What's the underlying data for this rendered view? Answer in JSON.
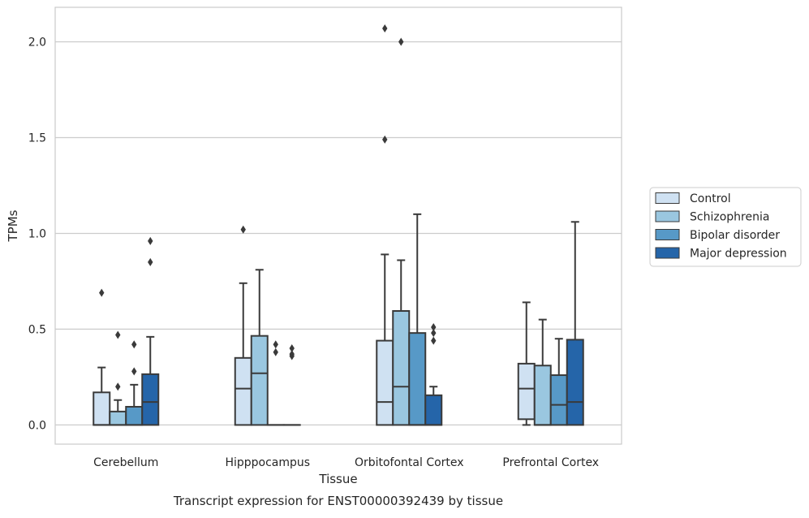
{
  "chart_data": {
    "type": "box",
    "caption": "Transcript expression for ENST00000392439 by tissue",
    "xlabel": "Tissue",
    "ylabel": "TPMs",
    "ylim": [
      -0.1,
      2.18
    ],
    "yticks": [
      0.0,
      0.5,
      1.0,
      1.5,
      2.0
    ],
    "ytick_labels": [
      "0.0",
      "0.5",
      "1.0",
      "1.5",
      "2.0"
    ],
    "grid": "horizontal",
    "legend_position": "right",
    "categories": [
      "Cerebellum",
      "Hipppocampus",
      "Orbitofontal Cortex",
      "Prefrontal Cortex"
    ],
    "series": [
      {
        "name": "Control",
        "color": "#cfe1f2",
        "boxes": [
          {
            "q1": 0.0,
            "median": 0.0,
            "q3": 0.17,
            "whisker_low": 0.0,
            "whisker_high": 0.3,
            "outliers": [
              0.69
            ]
          },
          {
            "q1": 0.0,
            "median": 0.19,
            "q3": 0.35,
            "whisker_low": 0.0,
            "whisker_high": 0.74,
            "outliers": [
              1.02
            ]
          },
          {
            "q1": 0.0,
            "median": 0.12,
            "q3": 0.44,
            "whisker_low": 0.0,
            "whisker_high": 0.89,
            "outliers": [
              1.49,
              2.07
            ]
          },
          {
            "q1": 0.03,
            "median": 0.19,
            "q3": 0.32,
            "whisker_low": 0.0,
            "whisker_high": 0.64,
            "outliers": []
          }
        ]
      },
      {
        "name": "Schizophrenia",
        "color": "#9ac7e0",
        "boxes": [
          {
            "q1": 0.0,
            "median": 0.0,
            "q3": 0.07,
            "whisker_low": 0.0,
            "whisker_high": 0.13,
            "outliers": [
              0.2,
              0.47
            ]
          },
          {
            "q1": 0.0,
            "median": 0.27,
            "q3": 0.465,
            "whisker_low": 0.0,
            "whisker_high": 0.81,
            "outliers": []
          },
          {
            "q1": 0.0,
            "median": 0.2,
            "q3": 0.595,
            "whisker_low": 0.0,
            "whisker_high": 0.86,
            "outliers": [
              2.0
            ]
          },
          {
            "q1": 0.0,
            "median": 0.0,
            "q3": 0.31,
            "whisker_low": 0.0,
            "whisker_high": 0.55,
            "outliers": []
          }
        ]
      },
      {
        "name": "Bipolar disorder",
        "color": "#5799c7",
        "boxes": [
          {
            "q1": 0.0,
            "median": 0.0,
            "q3": 0.095,
            "whisker_low": 0.0,
            "whisker_high": 0.21,
            "outliers": [
              0.28,
              0.42
            ]
          },
          {
            "q1": 0.0,
            "median": 0.0,
            "q3": 0.0,
            "whisker_low": 0.0,
            "whisker_high": 0.0,
            "outliers": [
              0.38,
              0.42
            ]
          },
          {
            "q1": 0.0,
            "median": 0.0,
            "q3": 0.48,
            "whisker_low": 0.0,
            "whisker_high": 1.1,
            "outliers": []
          },
          {
            "q1": 0.0,
            "median": 0.105,
            "q3": 0.26,
            "whisker_low": 0.0,
            "whisker_high": 0.45,
            "outliers": []
          }
        ]
      },
      {
        "name": "Major depression",
        "color": "#2565a9",
        "boxes": [
          {
            "q1": 0.0,
            "median": 0.12,
            "q3": 0.265,
            "whisker_low": 0.0,
            "whisker_high": 0.46,
            "outliers": [
              0.85,
              0.96
            ]
          },
          {
            "q1": 0.0,
            "median": 0.0,
            "q3": 0.0,
            "whisker_low": 0.0,
            "whisker_high": 0.0,
            "outliers": [
              0.36,
              0.37,
              0.4
            ]
          },
          {
            "q1": 0.0,
            "median": 0.0,
            "q3": 0.155,
            "whisker_low": 0.0,
            "whisker_high": 0.2,
            "outliers": [
              0.44,
              0.48,
              0.51
            ]
          },
          {
            "q1": 0.0,
            "median": 0.12,
            "q3": 0.445,
            "whisker_low": 0.0,
            "whisker_high": 1.06,
            "outliers": []
          }
        ]
      }
    ]
  }
}
